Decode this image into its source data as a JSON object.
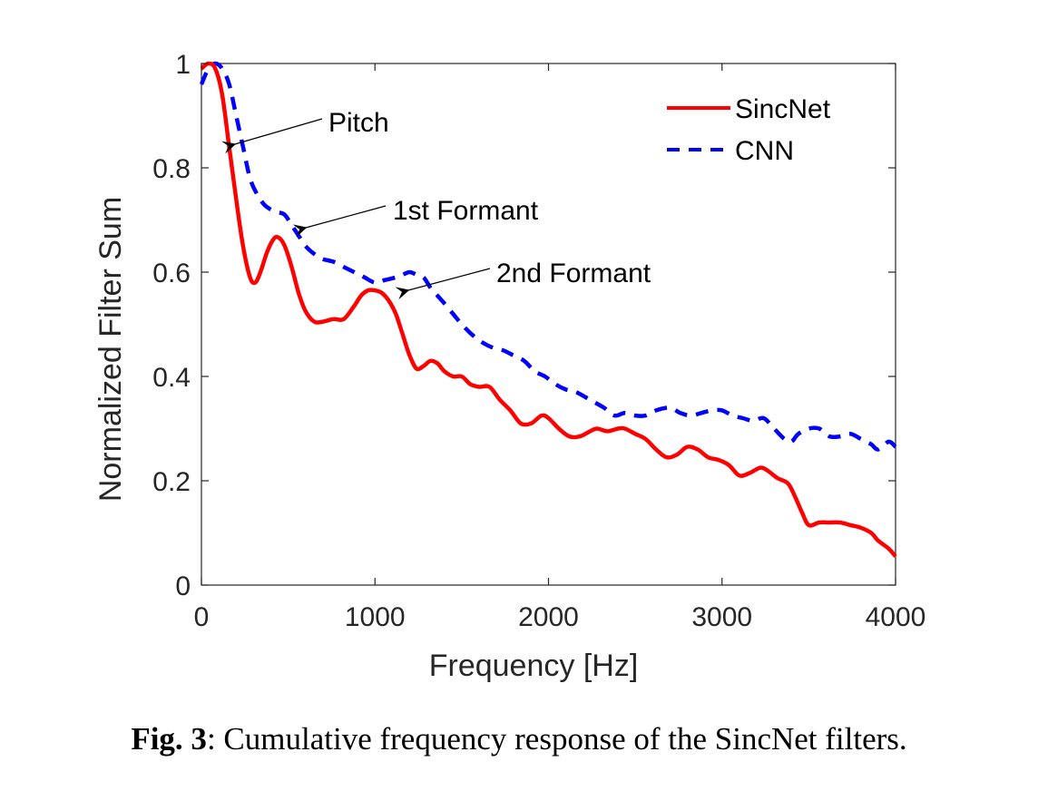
{
  "chart_data": {
    "type": "line",
    "title": "",
    "xlabel": "Frequency [Hz]",
    "ylabel": "Normalized Filter Sum",
    "xlim": [
      0,
      4000
    ],
    "ylim": [
      0,
      1
    ],
    "xticks": [
      0,
      1000,
      2000,
      3000,
      4000
    ],
    "xtick_labels": [
      "0",
      "1000",
      "2000",
      "3000",
      "4000"
    ],
    "yticks": [
      0,
      0.2,
      0.4,
      0.6,
      0.8,
      1
    ],
    "ytick_labels": [
      "0",
      "0.2",
      "0.4",
      "0.6",
      "0.8",
      "1"
    ],
    "grid": false,
    "legend_position": "top-right",
    "series": [
      {
        "name": "SincNet",
        "color": "#ff0000",
        "style": "solid",
        "x": [
          0,
          40,
          80,
          120,
          160,
          200,
          240,
          280,
          310,
          340,
          380,
          420,
          450,
          480,
          520,
          560,
          600,
          650,
          700,
          760,
          820,
          880,
          920,
          960,
          1000,
          1040,
          1080,
          1120,
          1160,
          1200,
          1240,
          1280,
          1320,
          1360,
          1400,
          1450,
          1500,
          1550,
          1600,
          1660,
          1720,
          1780,
          1840,
          1900,
          1960,
          2000,
          2060,
          2120,
          2180,
          2240,
          2280,
          2340,
          2400,
          2440,
          2500,
          2560,
          2620,
          2680,
          2740,
          2800,
          2860,
          2920,
          2980,
          3040,
          3100,
          3160,
          3220,
          3260,
          3320,
          3380,
          3420,
          3460,
          3500,
          3560,
          3620,
          3680,
          3740,
          3800,
          3860,
          3900,
          3960,
          4000
        ],
        "y": [
          0.99,
          1.0,
          0.99,
          0.94,
          0.84,
          0.74,
          0.65,
          0.59,
          0.58,
          0.6,
          0.64,
          0.665,
          0.665,
          0.65,
          0.61,
          0.56,
          0.525,
          0.505,
          0.505,
          0.51,
          0.51,
          0.535,
          0.555,
          0.565,
          0.565,
          0.56,
          0.545,
          0.52,
          0.48,
          0.44,
          0.415,
          0.42,
          0.43,
          0.425,
          0.41,
          0.4,
          0.4,
          0.385,
          0.38,
          0.38,
          0.355,
          0.335,
          0.31,
          0.31,
          0.325,
          0.32,
          0.3,
          0.285,
          0.285,
          0.295,
          0.3,
          0.295,
          0.3,
          0.3,
          0.29,
          0.28,
          0.26,
          0.245,
          0.25,
          0.265,
          0.26,
          0.245,
          0.24,
          0.23,
          0.21,
          0.215,
          0.225,
          0.22,
          0.205,
          0.195,
          0.17,
          0.14,
          0.115,
          0.12,
          0.12,
          0.12,
          0.115,
          0.11,
          0.1,
          0.085,
          0.07,
          0.055
        ]
      },
      {
        "name": "CNN",
        "color": "#0000ff",
        "style": "dashed",
        "x": [
          0,
          40,
          80,
          120,
          160,
          200,
          240,
          280,
          320,
          360,
          400,
          440,
          480,
          520,
          560,
          600,
          650,
          700,
          760,
          820,
          880,
          940,
          1000,
          1060,
          1120,
          1160,
          1200,
          1240,
          1280,
          1320,
          1360,
          1400,
          1450,
          1500,
          1560,
          1620,
          1680,
          1740,
          1800,
          1860,
          1920,
          1980,
          2040,
          2100,
          2160,
          2240,
          2320,
          2380,
          2440,
          2500,
          2560,
          2620,
          2700,
          2760,
          2820,
          2880,
          2940,
          3000,
          3060,
          3120,
          3180,
          3240,
          3300,
          3360,
          3400,
          3440,
          3500,
          3560,
          3620,
          3680,
          3740,
          3800,
          3860,
          3900,
          3960,
          4000
        ],
        "y": [
          0.96,
          0.99,
          1.0,
          0.99,
          0.96,
          0.9,
          0.84,
          0.78,
          0.75,
          0.73,
          0.72,
          0.715,
          0.71,
          0.69,
          0.67,
          0.65,
          0.635,
          0.625,
          0.62,
          0.61,
          0.6,
          0.59,
          0.58,
          0.585,
          0.59,
          0.595,
          0.6,
          0.595,
          0.59,
          0.57,
          0.555,
          0.54,
          0.52,
          0.5,
          0.48,
          0.465,
          0.455,
          0.45,
          0.44,
          0.43,
          0.41,
          0.4,
          0.385,
          0.375,
          0.37,
          0.355,
          0.34,
          0.325,
          0.33,
          0.325,
          0.325,
          0.335,
          0.34,
          0.33,
          0.325,
          0.33,
          0.335,
          0.335,
          0.325,
          0.32,
          0.315,
          0.32,
          0.3,
          0.28,
          0.275,
          0.29,
          0.3,
          0.3,
          0.285,
          0.285,
          0.29,
          0.28,
          0.27,
          0.26,
          0.275,
          0.265
        ]
      }
    ],
    "annotations": [
      {
        "text": "Pitch",
        "x": 150,
        "y": 0.84
      },
      {
        "text": "1st Formant",
        "x": 560,
        "y": 0.68
      },
      {
        "text": "2nd Formant",
        "x": 1150,
        "y": 0.56
      }
    ]
  },
  "caption": {
    "label": "Fig. 3",
    "text": ": Cumulative frequency response of the SincNet filters."
  }
}
